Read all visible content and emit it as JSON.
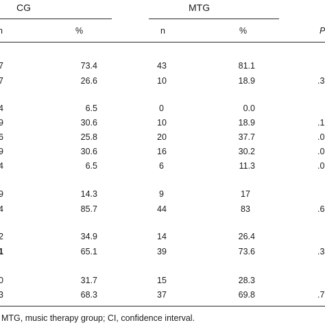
{
  "header": {
    "group1": "CG",
    "group2": "MTG",
    "col_n1": "n",
    "col_pct1": "%",
    "col_n2": "n",
    "col_pct2": "%",
    "col_p": "P"
  },
  "rows": [
    {
      "n1": "7",
      "pct1": "73.4",
      "n2": "43",
      "pct2": "81.1",
      "p": ""
    },
    {
      "n1": "7",
      "pct1": "26.6",
      "n2": "10",
      "pct2": "18.9",
      "p": ".3"
    },
    {
      "n1": "4",
      "pct1": "6.5",
      "n2": "0",
      "pct2": "0.0",
      "p": ""
    },
    {
      "n1": "9",
      "pct1": "30.6",
      "n2": "10",
      "pct2": "18.9",
      "p": ".1"
    },
    {
      "n1": "6",
      "pct1": "25.8",
      "n2": "20",
      "pct2": "37.7",
      "p": ".0"
    },
    {
      "n1": "9",
      "pct1": "30.6",
      "n2": "16",
      "pct2": "30.2",
      "p": ".0"
    },
    {
      "n1": "4",
      "pct1": "6.5",
      "n2": "6",
      "pct2": "11.3",
      "p": ".0"
    },
    {
      "n1": "9",
      "pct1": "14.3",
      "n2": "9",
      "pct2": "17",
      "p": ""
    },
    {
      "n1": "4",
      "pct1": "85.7",
      "n2": "44",
      "pct2": "83",
      "p": ".6"
    },
    {
      "n1": "2",
      "pct1": "34.9",
      "n2": "14",
      "pct2": "26.4",
      "p": ""
    },
    {
      "n1": "1",
      "pct1": "65.1",
      "n2": "39",
      "pct2": "73.6",
      "p": ".3"
    },
    {
      "n1": "0",
      "pct1": "31.7",
      "n2": "15",
      "pct2": "28.3",
      "p": ""
    },
    {
      "n1": "3",
      "pct1": "68.3",
      "n2": "37",
      "pct2": "69.8",
      "p": ".7"
    }
  ],
  "footnote": "MTG, music therapy group; CI, confidence interval."
}
